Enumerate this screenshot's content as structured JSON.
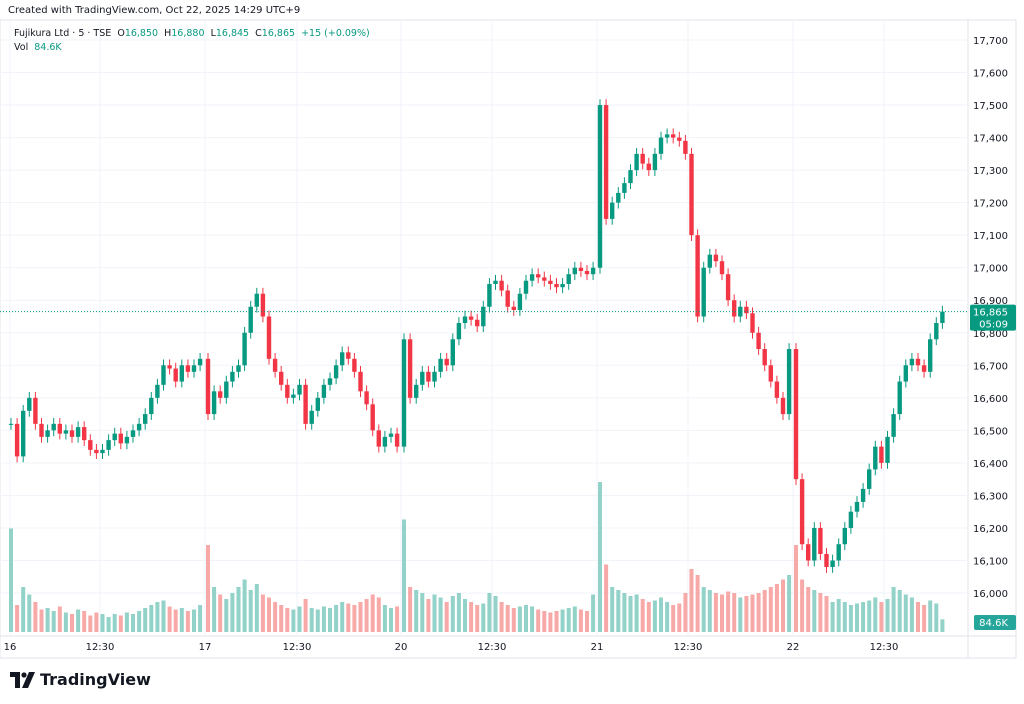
{
  "header": {
    "created": "Created with TradingView.com, Oct 22, 2025 14:29 UTC+9",
    "symbol": "Fujikura Ltd · 5 · TSE",
    "o_label": "O",
    "o": "16,850",
    "h_label": "H",
    "h": "16,880",
    "l_label": "L",
    "l": "16,845",
    "c_label": "C",
    "c": "16,865",
    "change": "+15 (+0.09%)",
    "vol_label": "Vol",
    "vol": "84.6K"
  },
  "price_tag": {
    "price": "16,865",
    "countdown": "05:09"
  },
  "volume_tag": "84.6K",
  "brand": "TradingView",
  "colors": {
    "up": "#089981",
    "down": "#f23645",
    "up_vol": "#92d2c8",
    "down_vol": "#f7a9a7",
    "grid": "#f0f3fa",
    "text": "#131722"
  },
  "chart_data": {
    "type": "candlestick",
    "title": "Fujikura Ltd · 5 · TSE",
    "ylim": [
      15950,
      17750
    ],
    "yticks": [
      "17,700",
      "17,600",
      "17,500",
      "17,400",
      "17,300",
      "17,200",
      "17,100",
      "17,000",
      "16,900",
      "16,800",
      "16,700",
      "16,600",
      "16,500",
      "16,400",
      "16,300",
      "16,200",
      "16,100",
      "16,000"
    ],
    "ytick_values": [
      17700,
      17600,
      17500,
      17400,
      17300,
      17200,
      17100,
      17000,
      16900,
      16800,
      16700,
      16600,
      16500,
      16400,
      16300,
      16200,
      16100,
      16000
    ],
    "xticks": [
      "16",
      "12:30",
      "17",
      "12:30",
      "20",
      "12:30",
      "21",
      "12:30",
      "22",
      "12:30"
    ],
    "last_price": 16865,
    "days": [
      {
        "label": "16",
        "closes": [
          16520,
          16420,
          16560,
          16600,
          16520,
          16480,
          16500,
          16520,
          16490,
          16500,
          16480,
          16510,
          16470,
          16440,
          16430,
          16440,
          16470,
          16490,
          16460,
          16480,
          16500,
          16520,
          16550,
          16600,
          16640,
          16700,
          16690,
          16650,
          16700,
          16680,
          16700,
          16720
        ],
        "volumes_k": [
          690,
          180,
          300,
          250,
          200,
          150,
          160,
          140,
          170,
          130,
          120,
          150,
          140,
          110,
          130,
          120,
          100,
          120,
          110,
          130,
          120,
          140,
          160,
          180,
          200,
          210,
          170,
          150,
          160,
          140,
          150,
          180
        ]
      },
      {
        "label": "17",
        "closes": [
          16550,
          16620,
          16600,
          16650,
          16680,
          16700,
          16800,
          16880,
          16920,
          16850,
          16720,
          16680,
          16640,
          16600,
          16610,
          16640,
          16520,
          16560,
          16600,
          16640,
          16660,
          16700,
          16740,
          16720,
          16680,
          16620,
          16580,
          16500,
          16450,
          16480,
          16490,
          16450
        ],
        "volumes_k": [
          580,
          300,
          250,
          220,
          260,
          300,
          350,
          280,
          320,
          250,
          230,
          200,
          180,
          160,
          150,
          170,
          220,
          160,
          150,
          170,
          160,
          180,
          200,
          190,
          180,
          200,
          220,
          250,
          230,
          180,
          160,
          170
        ]
      },
      {
        "label": "20",
        "closes": [
          16780,
          16600,
          16640,
          16680,
          16650,
          16680,
          16720,
          16700,
          16780,
          16830,
          16850,
          16840,
          16820,
          16880,
          16950,
          16960,
          16930,
          16880,
          16870,
          16920,
          16960,
          16980,
          16970,
          16960,
          16950,
          16940,
          16950,
          16980,
          17000,
          16990,
          16980,
          17000
        ],
        "volumes_k": [
          750,
          300,
          280,
          260,
          220,
          250,
          230,
          200,
          240,
          260,
          220,
          200,
          180,
          190,
          260,
          240,
          200,
          180,
          160,
          170,
          180,
          170,
          150,
          140,
          130,
          140,
          150,
          160,
          170,
          150,
          140,
          250
        ]
      },
      {
        "label": "21",
        "closes": [
          17500,
          17150,
          17200,
          17230,
          17260,
          17300,
          17350,
          17320,
          17300,
          17350,
          17400,
          17410,
          17400,
          17390,
          17350,
          17100,
          16850,
          17000,
          17040,
          17020,
          16980,
          16900,
          16850,
          16880,
          16860,
          16800,
          16750,
          16700,
          16650,
          16600,
          16550,
          16750
        ],
        "volumes_k": [
          1000,
          450,
          300,
          280,
          260,
          240,
          250,
          220,
          200,
          210,
          230,
          200,
          180,
          190,
          260,
          420,
          380,
          300,
          280,
          260,
          250,
          270,
          260,
          230,
          240,
          250,
          260,
          280,
          300,
          320,
          350,
          380
        ]
      },
      {
        "label": "22",
        "closes": [
          16350,
          16150,
          16100,
          16200,
          16120,
          16080,
          16100,
          16150,
          16200,
          16250,
          16280,
          16320,
          16380,
          16450,
          16400,
          16480,
          16550,
          16650,
          16700,
          16720,
          16700,
          16680,
          16780,
          16830,
          16865
        ],
        "volumes_k": [
          580,
          350,
          300,
          280,
          260,
          240,
          200,
          220,
          200,
          180,
          190,
          200,
          210,
          230,
          200,
          220,
          300,
          280,
          250,
          230,
          200,
          180,
          210,
          190,
          84.6
        ]
      }
    ]
  }
}
